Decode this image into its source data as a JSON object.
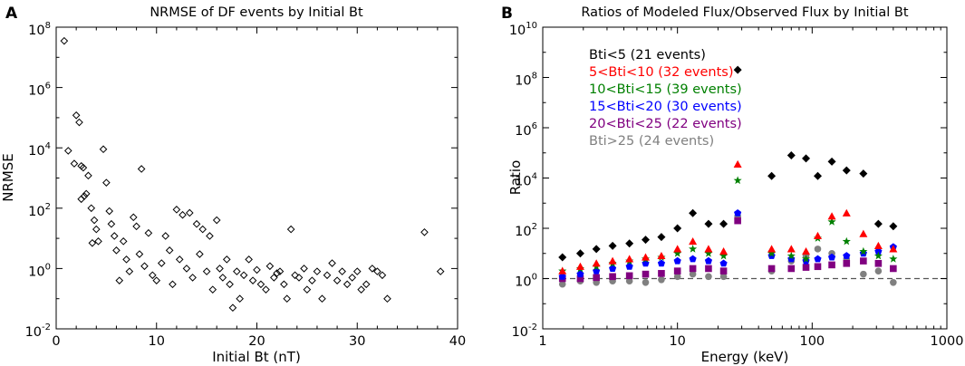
{
  "panel_a_letter": "A",
  "panel_b_letter": "B",
  "chart_data": [
    {
      "type": "scatter",
      "title": "NRMSE of DF events by Initial Bt",
      "xlabel": "Initial Bt (nT)",
      "ylabel": "NRMSE",
      "xlim": [
        0,
        40
      ],
      "ylim": [
        0.01,
        100000000
      ],
      "yscale": "log",
      "xticks": [
        0,
        10,
        20,
        30,
        40
      ],
      "xtick_labels": [
        "0",
        "10",
        "20",
        "30",
        "40"
      ],
      "yticks": [
        {
          "base": "10",
          "exp": "-2"
        },
        {
          "base": "10",
          "exp": "0"
        },
        {
          "base": "10",
          "exp": "2"
        },
        {
          "base": "10",
          "exp": "4"
        },
        {
          "base": "10",
          "exp": "6"
        },
        {
          "base": "10",
          "exp": "8"
        }
      ],
      "marker": "diamond-open",
      "color": "#000000",
      "points": [
        [
          0.8,
          35000000
        ],
        [
          1.2,
          8000
        ],
        [
          1.8,
          3000
        ],
        [
          2.0,
          120000
        ],
        [
          2.3,
          70000
        ],
        [
          2.5,
          2500
        ],
        [
          2.7,
          2200
        ],
        [
          3.2,
          1200
        ],
        [
          2.8,
          250
        ],
        [
          2.5,
          200
        ],
        [
          3.0,
          300
        ],
        [
          3.5,
          100
        ],
        [
          3.8,
          40
        ],
        [
          4.0,
          20
        ],
        [
          4.2,
          8
        ],
        [
          3.6,
          7
        ],
        [
          4.7,
          9000
        ],
        [
          5.0,
          700
        ],
        [
          5.3,
          80
        ],
        [
          5.5,
          30
        ],
        [
          5.8,
          12
        ],
        [
          6.0,
          4
        ],
        [
          6.3,
          0.4
        ],
        [
          6.7,
          8
        ],
        [
          7.0,
          2
        ],
        [
          7.3,
          0.8
        ],
        [
          7.7,
          50
        ],
        [
          8.0,
          25
        ],
        [
          8.3,
          3
        ],
        [
          8.5,
          2000
        ],
        [
          8.8,
          1.2
        ],
        [
          9.2,
          15
        ],
        [
          9.6,
          0.6
        ],
        [
          10.0,
          0.4
        ],
        [
          10.5,
          1.5
        ],
        [
          10.9,
          12
        ],
        [
          11.3,
          4
        ],
        [
          11.6,
          0.3
        ],
        [
          12.0,
          90
        ],
        [
          12.3,
          2
        ],
        [
          12.6,
          60
        ],
        [
          13.0,
          1
        ],
        [
          13.3,
          70
        ],
        [
          13.6,
          0.5
        ],
        [
          14.0,
          30
        ],
        [
          14.3,
          3
        ],
        [
          14.6,
          20
        ],
        [
          15.0,
          0.8
        ],
        [
          15.3,
          12
        ],
        [
          15.6,
          0.2
        ],
        [
          16.0,
          40
        ],
        [
          16.3,
          1
        ],
        [
          16.6,
          0.5
        ],
        [
          17.0,
          2
        ],
        [
          17.3,
          0.3
        ],
        [
          17.6,
          0.05
        ],
        [
          18.0,
          0.8
        ],
        [
          18.3,
          0.1
        ],
        [
          18.7,
          0.6
        ],
        [
          19.2,
          2
        ],
        [
          19.6,
          0.4
        ],
        [
          20.0,
          0.9
        ],
        [
          20.4,
          0.3
        ],
        [
          20.9,
          0.2
        ],
        [
          21.3,
          1.2
        ],
        [
          21.7,
          0.5
        ],
        [
          22.0,
          0.7
        ],
        [
          22.3,
          0.8
        ],
        [
          22.7,
          0.3
        ],
        [
          23.0,
          0.1
        ],
        [
          23.4,
          20
        ],
        [
          23.8,
          0.6
        ],
        [
          24.2,
          0.5
        ],
        [
          24.7,
          1
        ],
        [
          25.0,
          0.2
        ],
        [
          25.5,
          0.4
        ],
        [
          26.0,
          0.8
        ],
        [
          26.5,
          0.1
        ],
        [
          27.0,
          0.6
        ],
        [
          27.5,
          1.5
        ],
        [
          28.0,
          0.4
        ],
        [
          28.5,
          0.8
        ],
        [
          29.0,
          0.3
        ],
        [
          29.5,
          0.5
        ],
        [
          30.0,
          0.8
        ],
        [
          30.4,
          0.2
        ],
        [
          30.9,
          0.3
        ],
        [
          31.5,
          1
        ],
        [
          32.0,
          0.8
        ],
        [
          32.5,
          0.6
        ],
        [
          33.0,
          0.1
        ],
        [
          36.7,
          16
        ],
        [
          38.3,
          0.8
        ]
      ]
    },
    {
      "type": "scatter",
      "title": "Ratios of Modeled Flux/Observed Flux by Initial Bt",
      "xlabel": "Energy (keV)",
      "ylabel": "Ratio",
      "xscale": "log",
      "yscale": "log",
      "xlim": [
        1,
        1000
      ],
      "ylim": [
        0.01,
        10000000000
      ],
      "xticks": [
        1,
        10,
        100,
        1000
      ],
      "xtick_labels": [
        "1",
        "10",
        "100",
        "1000"
      ],
      "yticks": [
        {
          "base": "10",
          "exp": "-2"
        },
        {
          "base": "10",
          "exp": "0"
        },
        {
          "base": "10",
          "exp": "2"
        },
        {
          "base": "10",
          "exp": "4"
        },
        {
          "base": "10",
          "exp": "6"
        },
        {
          "base": "10",
          "exp": "8"
        },
        {
          "base": "10",
          "exp": "10"
        }
      ],
      "reference_line": {
        "y": 1,
        "style": "dashed"
      },
      "energies": [
        1.4,
        1.9,
        2.5,
        3.3,
        4.4,
        5.8,
        7.6,
        10,
        13,
        17,
        22,
        28,
        50,
        70,
        90,
        110,
        140,
        180,
        240,
        310,
        400
      ],
      "series": [
        {
          "name": "Bti<5 (21 events)",
          "marker": "diamond",
          "color": "#000000",
          "values": [
            7,
            10,
            15,
            20,
            25,
            35,
            45,
            100,
            400,
            150,
            150,
            200000000,
            12000,
            80000,
            60000,
            12000,
            45000,
            20000,
            15000,
            150,
            120
          ]
        },
        {
          "name": "5<Bti<10 (32 events)",
          "marker": "triangle",
          "color": "#ff0000",
          "values": [
            2,
            3,
            4,
            5,
            6,
            7,
            8,
            15,
            30,
            15,
            12,
            35000,
            15,
            15,
            12,
            50,
            300,
            400,
            60,
            20,
            15
          ]
        },
        {
          "name": "10<Bti<15 (39 events)",
          "marker": "star",
          "color": "#008000",
          "values": [
            2,
            2.5,
            3,
            4,
            5,
            6,
            7,
            10,
            15,
            10,
            8,
            8000,
            10,
            8,
            6,
            40,
            180,
            30,
            12,
            8,
            6
          ]
        },
        {
          "name": "15<Bti<20 (30 events)",
          "marker": "pentagon",
          "color": "#0000ff",
          "values": [
            1.2,
            1.5,
            2,
            2.5,
            3,
            4,
            4,
            5,
            6,
            5,
            4,
            400,
            8,
            6,
            5,
            6,
            7,
            8,
            10,
            12,
            18
          ]
        },
        {
          "name": "20<Bti<25 (22 events)",
          "marker": "square",
          "color": "#800080",
          "values": [
            1,
            1,
            1.1,
            1.2,
            1.3,
            1.5,
            1.6,
            2,
            2.5,
            2.5,
            2,
            200,
            2.5,
            2.5,
            2.8,
            3,
            3.5,
            4,
            5,
            4,
            2.5
          ]
        },
        {
          "name": "Bti>25 (24 events)",
          "marker": "circle",
          "color": "#808080",
          "values": [
            0.6,
            0.8,
            0.7,
            0.8,
            0.8,
            0.7,
            0.9,
            1.2,
            1.5,
            1.2,
            1.2,
            300,
            2,
            5,
            8,
            15,
            10,
            6,
            1.5,
            2,
            0.7
          ]
        }
      ]
    }
  ]
}
